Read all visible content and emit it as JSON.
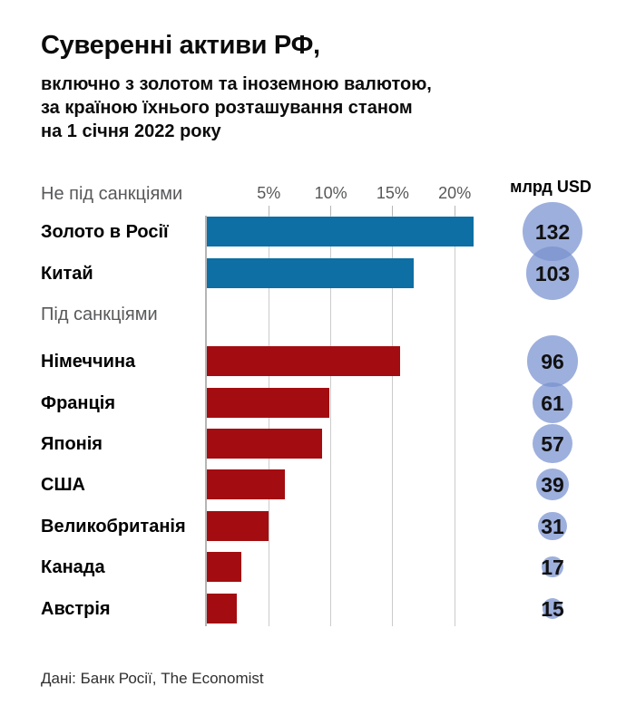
{
  "header": {
    "title": "Суверенні активи РФ,",
    "subtitle": "включно з золотом та іноземною валютою,\nза країною їхнього розташування станом\nна 1 січня 2022 року"
  },
  "chart_data": {
    "type": "bar",
    "orientation": "horizontal",
    "title": "Суверенні активи РФ, включно з золотом та іноземною валютою, за країною їхнього розташування станом на 1 січня 2022 року",
    "value_unit": "млрд USD",
    "x_tick_labels": [
      "5%",
      "10%",
      "15%",
      "20%"
    ],
    "x_ticks_pct": [
      5,
      10,
      15,
      20
    ],
    "xlim_pct": [
      0,
      21.5
    ],
    "grid": true,
    "legend_position": "none",
    "bubble_color": "#a3b2de",
    "groups": [
      {
        "label": "Не під санкціями",
        "color": "#0e6fa4",
        "items": [
          {
            "label": "Золото в Росії",
            "share_pct": 21.5,
            "usd_bn": 132
          },
          {
            "label": "Китай",
            "share_pct": 16.7,
            "usd_bn": 103
          }
        ]
      },
      {
        "label": "Під санкціями",
        "color": "#a30d11",
        "items": [
          {
            "label": "Німеччина",
            "share_pct": 15.6,
            "usd_bn": 96
          },
          {
            "label": "Франція",
            "share_pct": 9.9,
            "usd_bn": 61
          },
          {
            "label": "Японія",
            "share_pct": 9.3,
            "usd_bn": 57
          },
          {
            "label": "США",
            "share_pct": 6.3,
            "usd_bn": 39
          },
          {
            "label": "Великобританія",
            "share_pct": 5.0,
            "usd_bn": 31
          },
          {
            "label": "Канада",
            "share_pct": 2.8,
            "usd_bn": 17
          },
          {
            "label": "Австрія",
            "share_pct": 2.4,
            "usd_bn": 15
          }
        ]
      }
    ]
  },
  "footer": {
    "source": "Дані: Банк Росії, The Economist"
  }
}
